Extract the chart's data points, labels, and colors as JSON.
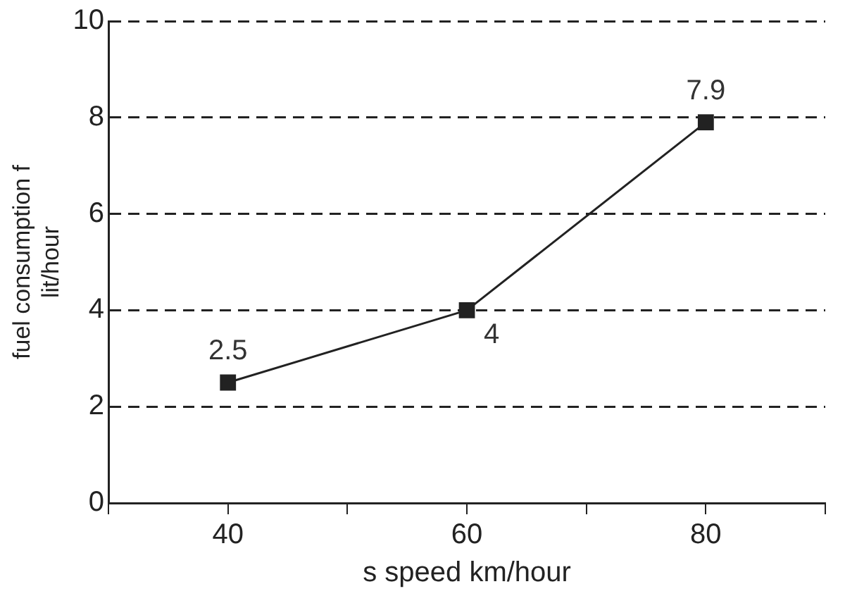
{
  "chart_data": {
    "type": "line",
    "xlabel": "s speed km/hour",
    "ylabel": "fuel consumption f\nlit/hour",
    "x": [
      40,
      60,
      80
    ],
    "series": [
      {
        "color": "#222222",
        "values": [
          2.5,
          4,
          7.9
        ]
      }
    ],
    "xlim": [
      30,
      90
    ],
    "xticks": [
      {
        "value": 30,
        "label": null
      },
      40,
      {
        "value": 50,
        "label": null
      },
      60,
      {
        "value": 70,
        "label": null
      },
      80,
      {
        "value": 90,
        "label": null
      }
    ],
    "ylim": [
      0,
      10
    ],
    "yticks": [
      0,
      2,
      4,
      6,
      8,
      10
    ],
    "grid": "y",
    "marker": "square",
    "line_style": "solid",
    "data_labels": true,
    "legend": false
  }
}
